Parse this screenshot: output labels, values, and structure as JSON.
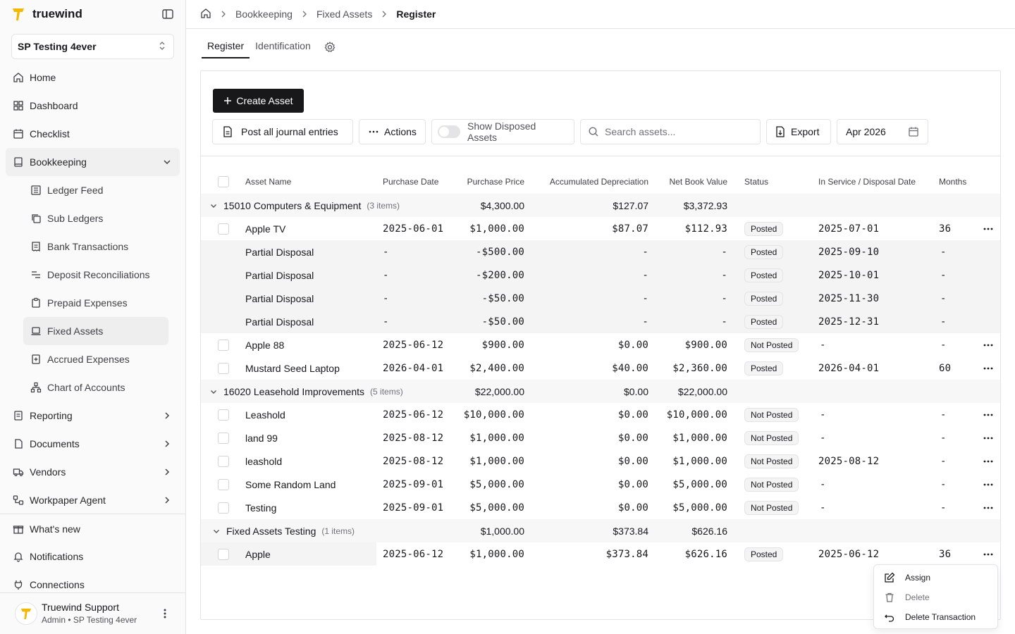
{
  "app": {
    "name": "truewind"
  },
  "company": {
    "name": "SP Testing 4ever"
  },
  "nav": {
    "home": "Home",
    "dashboard": "Dashboard",
    "checklist": "Checklist",
    "bookkeeping": "Bookkeeping",
    "sub": {
      "ledger_feed": "Ledger Feed",
      "sub_ledgers": "Sub Ledgers",
      "bank_transactions": "Bank Transactions",
      "deposit_reconciliations": "Deposit Reconciliations",
      "prepaid_expenses": "Prepaid Expenses",
      "fixed_assets": "Fixed Assets",
      "accrued_expenses": "Accrued Expenses",
      "chart_of_accounts": "Chart of Accounts"
    },
    "reporting": "Reporting",
    "documents": "Documents",
    "vendors": "Vendors",
    "workpaper_agent": "Workpaper Agent",
    "whats_new": "What's new",
    "notifications": "Notifications",
    "connections": "Connections"
  },
  "user": {
    "name": "Truewind Support",
    "role": "Admin • SP Testing 4ever"
  },
  "breadcrumb": {
    "items": [
      "Bookkeeping",
      "Fixed Assets",
      "Register"
    ]
  },
  "tabs": [
    "Register",
    "Identification"
  ],
  "toolbar": {
    "create": "Create Asset",
    "post_all": "Post all journal entries",
    "actions": "Actions",
    "show_disposed": "Show Disposed Assets",
    "search_placeholder": "Search assets...",
    "export": "Export",
    "date": "Apr 2026"
  },
  "table": {
    "columns": [
      "Asset Name",
      "Purchase Date",
      "Purchase Price",
      "Accumulated Depreciation",
      "Net Book Value",
      "Status",
      "In Service / Disposal Date",
      "Months"
    ],
    "groups": [
      {
        "name": "15010 Computers & Equipment",
        "count": "(3 items)",
        "price": "$4,300.00",
        "accum": "$127.07",
        "nbv": "$3,372.93",
        "rows": [
          {
            "name": "Apple TV",
            "date": "2025-06-01",
            "price": "$1,000.00",
            "accum": "$87.07",
            "nbv": "$112.93",
            "status": "Posted",
            "service": "2025-07-01",
            "months": "36",
            "kind": "asset"
          },
          {
            "name": "Partial Disposal",
            "date": "-",
            "price": "-$500.00",
            "accum": "-",
            "nbv": "-",
            "status": "Posted",
            "service": "2025-09-10",
            "months": "-",
            "kind": "sub"
          },
          {
            "name": "Partial Disposal",
            "date": "-",
            "price": "-$200.00",
            "accum": "-",
            "nbv": "-",
            "status": "Posted",
            "service": "2025-10-01",
            "months": "-",
            "kind": "sub"
          },
          {
            "name": "Partial Disposal",
            "date": "-",
            "price": "-$50.00",
            "accum": "-",
            "nbv": "-",
            "status": "Posted",
            "service": "2025-11-30",
            "months": "-",
            "kind": "sub"
          },
          {
            "name": "Partial Disposal",
            "date": "-",
            "price": "-$50.00",
            "accum": "-",
            "nbv": "-",
            "status": "Posted",
            "service": "2025-12-31",
            "months": "-",
            "kind": "sub"
          },
          {
            "name": "Apple 88",
            "date": "2025-06-12",
            "price": "$900.00",
            "accum": "$0.00",
            "nbv": "$900.00",
            "status": "Not Posted",
            "service": "-",
            "months": "-",
            "kind": "asset"
          },
          {
            "name": "Mustard Seed Laptop",
            "date": "2026-04-01",
            "price": "$2,400.00",
            "accum": "$40.00",
            "nbv": "$2,360.00",
            "status": "Posted",
            "service": "2026-04-01",
            "months": "60",
            "kind": "asset"
          }
        ]
      },
      {
        "name": "16020 Leasehold Improvements",
        "count": "(5 items)",
        "price": "$22,000.00",
        "accum": "$0.00",
        "nbv": "$22,000.00",
        "rows": [
          {
            "name": "Leashold",
            "date": "2025-06-12",
            "price": "$10,000.00",
            "accum": "$0.00",
            "nbv": "$10,000.00",
            "status": "Not Posted",
            "service": "-",
            "months": "-",
            "kind": "asset"
          },
          {
            "name": "land 99",
            "date": "2025-08-12",
            "price": "$1,000.00",
            "accum": "$0.00",
            "nbv": "$1,000.00",
            "status": "Not Posted",
            "service": "-",
            "months": "-",
            "kind": "asset"
          },
          {
            "name": "leashold",
            "date": "2025-08-12",
            "price": "$1,000.00",
            "accum": "$0.00",
            "nbv": "$1,000.00",
            "status": "Not Posted",
            "service": "2025-08-12",
            "months": "-",
            "kind": "asset"
          },
          {
            "name": "Some Random Land",
            "date": "2025-09-01",
            "price": "$5,000.00",
            "accum": "$0.00",
            "nbv": "$5,000.00",
            "status": "Not Posted",
            "service": "-",
            "months": "-",
            "kind": "asset"
          },
          {
            "name": "Testing",
            "date": "2025-09-01",
            "price": "$5,000.00",
            "accum": "$0.00",
            "nbv": "$5,000.00",
            "status": "Not Posted",
            "service": "-",
            "months": "-",
            "kind": "asset"
          }
        ]
      },
      {
        "name": "Fixed Assets Testing",
        "count": "(1 items)",
        "price": "$1,000.00",
        "accum": "$373.84",
        "nbv": "$626.16",
        "rows": [
          {
            "name": "Apple",
            "date": "2025-06-12",
            "price": "$1,000.00",
            "accum": "$373.84",
            "nbv": "$626.16",
            "status": "Posted",
            "service": "2025-06-12",
            "months": "36",
            "kind": "asset"
          }
        ]
      }
    ]
  },
  "context_menu": {
    "items": [
      "Assign",
      "Delete",
      "Delete Transaction"
    ]
  },
  "icons": [
    "home-icon",
    "dashboard-icon",
    "checklist-icon",
    "book-icon",
    "chevron-icon",
    "gear-icon",
    "search-icon",
    "calendar-icon",
    "file-icon",
    "more-icon",
    "edit-icon",
    "trash-icon",
    "undo-icon"
  ],
  "colors": {
    "primary": "#18181b",
    "brand": "#f5b800",
    "border": "#e4e4e7"
  }
}
